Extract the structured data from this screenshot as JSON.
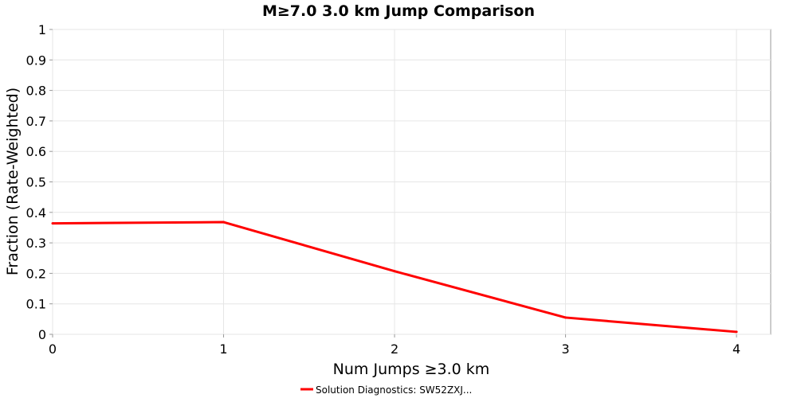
{
  "chart_data": {
    "type": "line",
    "title": "M≥7.0 3.0 km Jump Comparison",
    "xlabel": "Num Jumps ≥3.0 km",
    "ylabel": "Fraction (Rate-Weighted)",
    "xlim": [
      0,
      4.2
    ],
    "ylim": [
      0,
      1
    ],
    "xticks": [
      "0",
      "1",
      "2",
      "3",
      "4"
    ],
    "yticks": [
      "0",
      "0.1",
      "0.2",
      "0.3",
      "0.4",
      "0.5",
      "0.6",
      "0.7",
      "0.8",
      "0.9",
      "1"
    ],
    "grid": true,
    "legend_position": "bottom-center",
    "series": [
      {
        "name": "Solution Diagnostics: SW52ZXJ...",
        "color": "#ff0000",
        "x": [
          0,
          1,
          2,
          3,
          4
        ],
        "y": [
          0.364,
          0.368,
          0.207,
          0.055,
          0.008
        ]
      }
    ]
  }
}
